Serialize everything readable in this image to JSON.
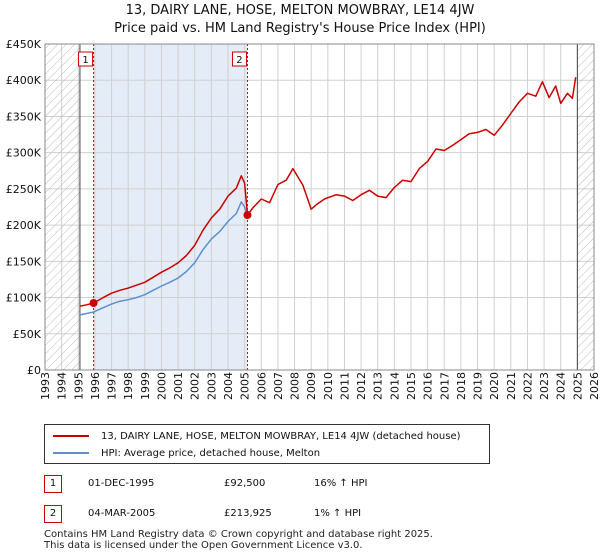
{
  "chart_data": {
    "type": "line",
    "title": "13, DAIRY LANE, HOSE, MELTON MOWBRAY, LE14 4JW",
    "subtitle": "Price paid vs. HM Land Registry's House Price Index (HPI)",
    "xlabel": "",
    "ylabel": "",
    "xlim": [
      1993,
      2026
    ],
    "ylim": [
      0,
      450000
    ],
    "x_ticks": [
      "1993",
      "1994",
      "1995",
      "1996",
      "1997",
      "1998",
      "1999",
      "2000",
      "2001",
      "2002",
      "2003",
      "2004",
      "2005",
      "2006",
      "2007",
      "2008",
      "2009",
      "2010",
      "2011",
      "2012",
      "2013",
      "2014",
      "2015",
      "2016",
      "2017",
      "2018",
      "2019",
      "2020",
      "2021",
      "2022",
      "2023",
      "2024",
      "2025",
      "2026"
    ],
    "y_ticks": [
      {
        "value": 0,
        "label": "£0"
      },
      {
        "value": 50000,
        "label": "£50K"
      },
      {
        "value": 100000,
        "label": "£100K"
      },
      {
        "value": 150000,
        "label": "£150K"
      },
      {
        "value": 200000,
        "label": "£200K"
      },
      {
        "value": 250000,
        "label": "£250K"
      },
      {
        "value": 300000,
        "label": "£300K"
      },
      {
        "value": 350000,
        "label": "£350K"
      },
      {
        "value": 400000,
        "label": "£400K"
      },
      {
        "value": 450000,
        "label": "£450K"
      }
    ],
    "grid": true,
    "hatched_regions": [
      [
        1993,
        1995.1
      ],
      [
        2025.0,
        2026
      ]
    ],
    "shaded_region": [
      1995.92,
      2005.17
    ],
    "series": [
      {
        "name": "13, DAIRY LANE, HOSE, MELTON MOWBRAY, LE14 4JW (detached house)",
        "color": "#cc0000",
        "x": [
          1995.1,
          1995.5,
          1995.92,
          1996.5,
          1997.0,
          1997.5,
          1998.0,
          1998.5,
          1999.0,
          1999.5,
          2000.0,
          2000.5,
          2001.0,
          2001.5,
          2002.0,
          2002.5,
          2003.0,
          2003.5,
          2004.0,
          2004.5,
          2004.8,
          2005.0,
          2005.17,
          2005.5,
          2006.0,
          2006.5,
          2007.0,
          2007.5,
          2007.9,
          2008.5,
          2009.0,
          2009.3,
          2009.8,
          2010.5,
          2011.0,
          2011.5,
          2012.0,
          2012.5,
          2013.0,
          2013.5,
          2014.0,
          2014.5,
          2015.0,
          2015.5,
          2016.0,
          2016.5,
          2017.0,
          2017.5,
          2018.0,
          2018.5,
          2019.0,
          2019.5,
          2020.0,
          2020.5,
          2021.0,
          2021.5,
          2022.0,
          2022.5,
          2022.9,
          2023.3,
          2023.7,
          2024.0,
          2024.4,
          2024.7,
          2024.9
        ],
        "values": [
          88000,
          90000,
          92500,
          100000,
          106000,
          110000,
          113000,
          117000,
          121000,
          128000,
          135000,
          141000,
          148000,
          158000,
          172000,
          193000,
          210000,
          222000,
          240000,
          251000,
          268000,
          258000,
          213925,
          224000,
          236000,
          231000,
          256000,
          262000,
          278000,
          255000,
          222000,
          228000,
          236000,
          242000,
          240000,
          234000,
          242000,
          248000,
          240000,
          238000,
          252000,
          262000,
          260000,
          278000,
          288000,
          305000,
          303000,
          310000,
          318000,
          326000,
          328000,
          332000,
          324000,
          338000,
          354000,
          370000,
          382000,
          378000,
          398000,
          376000,
          392000,
          368000,
          382000,
          375000,
          404000
        ]
      },
      {
        "name": "HPI: Average price, detached house, Melton",
        "color": "#5b8fd0",
        "x": [
          1995.1,
          1995.5,
          1995.92,
          1996.5,
          1997.0,
          1997.5,
          1998.0,
          1998.5,
          1999.0,
          1999.5,
          2000.0,
          2000.5,
          2001.0,
          2001.5,
          2002.0,
          2002.5,
          2003.0,
          2003.5,
          2004.0,
          2004.5,
          2004.8,
          2005.0,
          2005.17
        ],
        "values": [
          76000,
          78000,
          80000,
          86000,
          91000,
          95000,
          97000,
          100000,
          104000,
          110000,
          116000,
          121000,
          127000,
          136000,
          148000,
          166000,
          181000,
          191000,
          205000,
          216000,
          232000,
          225000,
          212000
        ]
      }
    ],
    "sales": [
      {
        "id": "1",
        "x": 1995.92,
        "price": 92500
      },
      {
        "id": "2",
        "x": 2005.17,
        "price": 213925
      }
    ]
  },
  "legend": {
    "entries": [
      {
        "label": "13, DAIRY LANE, HOSE, MELTON MOWBRAY, LE14 4JW (detached house)",
        "color": "#cc0000"
      },
      {
        "label": "HPI: Average price, detached house, Melton",
        "color": "#5b8fd0"
      }
    ]
  },
  "transactions": [
    {
      "id": "1",
      "date": "01-DEC-1995",
      "price": "£92,500",
      "hpi": "16% ↑ HPI"
    },
    {
      "id": "2",
      "date": "04-MAR-2005",
      "price": "£213,925",
      "hpi": "1% ↑ HPI"
    }
  ],
  "footer": {
    "line1": "Contains HM Land Registry data © Crown copyright and database right 2025.",
    "line2": "This data is licensed under the Open Government Licence v3.0."
  },
  "colors": {
    "red": "#cc0000",
    "blue": "#5b8fd0",
    "shade": "#e4ecf7",
    "grid": "#d0d0d0"
  }
}
